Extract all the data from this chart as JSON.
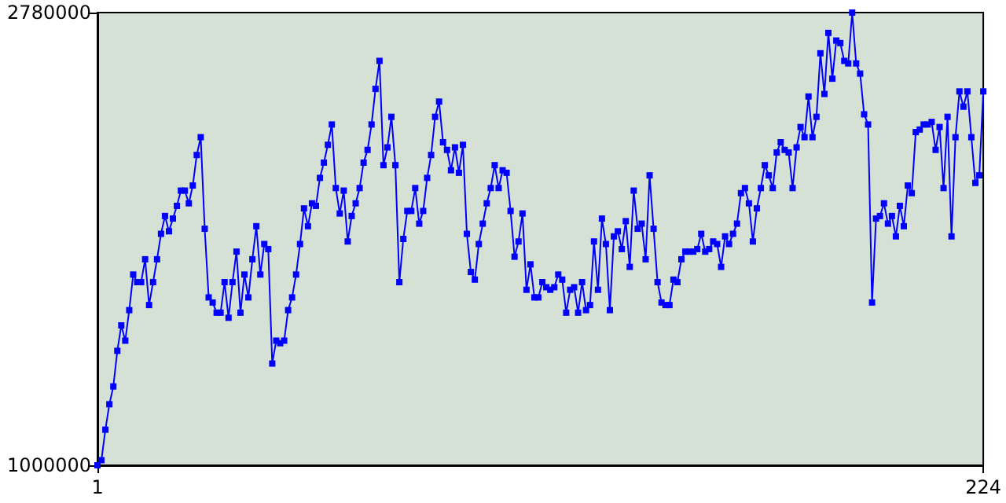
{
  "chart_data": {
    "type": "line",
    "marker": "square",
    "grid": false,
    "xlim": [
      1,
      224
    ],
    "xticks": [
      1,
      224
    ],
    "ylim": [
      1000000,
      2780000
    ],
    "yticks": [
      1000000,
      2780000
    ],
    "x": [
      1,
      2,
      3,
      4,
      5,
      6,
      7,
      8,
      9,
      10,
      11,
      12,
      13,
      14,
      15,
      16,
      17,
      18,
      19,
      20,
      21,
      22,
      23,
      24,
      25,
      26,
      27,
      28,
      29,
      30,
      31,
      32,
      33,
      34,
      35,
      36,
      37,
      38,
      39,
      40,
      41,
      42,
      43,
      44,
      45,
      46,
      47,
      48,
      49,
      50,
      51,
      52,
      53,
      54,
      55,
      56,
      57,
      58,
      59,
      60,
      61,
      62,
      63,
      64,
      65,
      66,
      67,
      68,
      69,
      70,
      71,
      72,
      73,
      74,
      75,
      76,
      77,
      78,
      79,
      80,
      81,
      82,
      83,
      84,
      85,
      86,
      87,
      88,
      89,
      90,
      91,
      92,
      93,
      94,
      95,
      96,
      97,
      98,
      99,
      100,
      101,
      102,
      103,
      104,
      105,
      106,
      107,
      108,
      109,
      110,
      111,
      112,
      113,
      114,
      115,
      116,
      117,
      118,
      119,
      120,
      121,
      122,
      123,
      124,
      125,
      126,
      127,
      128,
      129,
      130,
      131,
      132,
      133,
      134,
      135,
      136,
      137,
      138,
      139,
      140,
      141,
      142,
      143,
      144,
      145,
      146,
      147,
      148,
      149,
      150,
      151,
      152,
      153,
      154,
      155,
      156,
      157,
      158,
      159,
      160,
      161,
      162,
      163,
      164,
      165,
      166,
      167,
      168,
      169,
      170,
      171,
      172,
      173,
      174,
      175,
      176,
      177,
      178,
      179,
      180,
      181,
      182,
      183,
      184,
      185,
      186,
      187,
      188,
      189,
      190,
      191,
      192,
      193,
      194,
      195,
      196,
      197,
      198,
      199,
      200,
      201,
      202,
      203,
      204,
      205,
      206,
      207,
      208,
      209,
      210,
      211,
      212,
      213,
      214,
      215,
      216,
      217,
      218,
      219,
      220,
      221,
      222,
      223,
      224
    ],
    "series": [
      {
        "color": "#0000ff",
        "values": [
          1000000,
          1020000,
          1140000,
          1240000,
          1310000,
          1450000,
          1550000,
          1490000,
          1610000,
          1750000,
          1720000,
          1720000,
          1810000,
          1630000,
          1720000,
          1810000,
          1910000,
          1980000,
          1920000,
          1970000,
          2020000,
          2080000,
          2080000,
          2030000,
          2100000,
          2220000,
          2290000,
          1930000,
          1660000,
          1640000,
          1600000,
          1600000,
          1720000,
          1580000,
          1720000,
          1840000,
          1600000,
          1750000,
          1660000,
          1810000,
          1940000,
          1750000,
          1870000,
          1850000,
          1400000,
          1490000,
          1480000,
          1490000,
          1610000,
          1660000,
          1750000,
          1870000,
          2010000,
          1940000,
          2030000,
          2020000,
          2130000,
          2190000,
          2260000,
          2340000,
          2090000,
          1990000,
          2080000,
          1880000,
          1980000,
          2030000,
          2090000,
          2190000,
          2240000,
          2340000,
          2480000,
          2590000,
          2180000,
          2250000,
          2370000,
          2180000,
          1720000,
          1890000,
          2000000,
          2000000,
          2090000,
          1950000,
          2000000,
          2130000,
          2220000,
          2370000,
          2430000,
          2270000,
          2240000,
          2160000,
          2250000,
          2150000,
          2260000,
          1910000,
          1760000,
          1730000,
          1870000,
          1950000,
          2030000,
          2090000,
          2180000,
          2090000,
          2160000,
          2150000,
          2000000,
          1820000,
          1880000,
          1990000,
          1690000,
          1790000,
          1660000,
          1660000,
          1720000,
          1700000,
          1690000,
          1700000,
          1750000,
          1730000,
          1600000,
          1690000,
          1700000,
          1600000,
          1720000,
          1610000,
          1630000,
          1880000,
          1690000,
          1970000,
          1870000,
          1610000,
          1900000,
          1920000,
          1850000,
          1960000,
          1780000,
          2080000,
          1930000,
          1950000,
          1810000,
          2140000,
          1930000,
          1720000,
          1640000,
          1630000,
          1630000,
          1730000,
          1720000,
          1810000,
          1840000,
          1840000,
          1840000,
          1850000,
          1910000,
          1840000,
          1850000,
          1880000,
          1870000,
          1780000,
          1900000,
          1870000,
          1910000,
          1950000,
          2070000,
          2090000,
          2030000,
          1880000,
          2010000,
          2090000,
          2180000,
          2140000,
          2090000,
          2230000,
          2270000,
          2240000,
          2230000,
          2090000,
          2250000,
          2330000,
          2290000,
          2450000,
          2290000,
          2370000,
          2620000,
          2460000,
          2700000,
          2520000,
          2670000,
          2660000,
          2590000,
          2580000,
          2780000,
          2580000,
          2540000,
          2380000,
          2340000,
          1640000,
          1970000,
          1980000,
          2030000,
          1950000,
          1980000,
          1900000,
          2020000,
          1940000,
          2100000,
          2070000,
          2310000,
          2320000,
          2340000,
          2340000,
          2350000,
          2240000,
          2330000,
          2090000,
          2370000,
          1900000,
          2290000,
          2470000,
          2410000,
          2470000,
          2290000,
          2110000,
          2140000,
          2470000
        ]
      }
    ]
  }
}
